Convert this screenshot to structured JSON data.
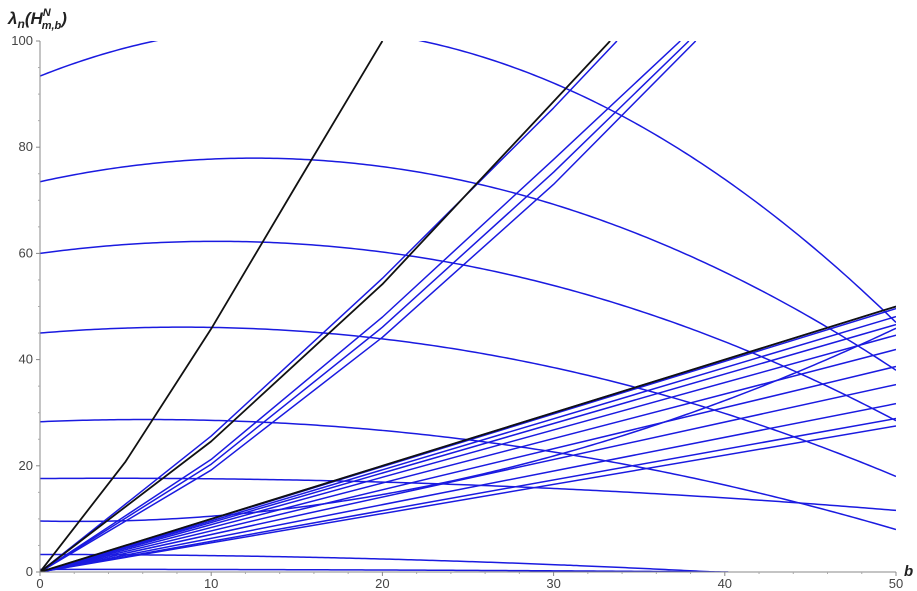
{
  "chart_data": {
    "type": "line",
    "title": "",
    "xlabel": "b",
    "ylabel": {
      "base": "λ",
      "sub_n": "n",
      "open": "(",
      "op": "H",
      "sup": "N",
      "sub": "m,b",
      "close": ")"
    },
    "xlim": [
      0,
      50
    ],
    "ylim": [
      0,
      100
    ],
    "x_ticks": [
      "0",
      "10",
      "20",
      "30",
      "40",
      "50"
    ],
    "y_ticks": [
      "0",
      "20",
      "40",
      "60",
      "80",
      "100"
    ],
    "x_tick_values": [
      0,
      10,
      20,
      30,
      40,
      50
    ],
    "y_tick_values": [
      0,
      20,
      40,
      60,
      80,
      100
    ],
    "grid": false,
    "colors": {
      "blue_curves": "#1a1ae0",
      "black_curves": "#111111",
      "axis": "#888888"
    },
    "series_groups": [
      {
        "group": "blue-lines",
        "color": "#1a1ae0",
        "series": [
          {
            "x": [
              0,
              50
            ],
            "y": [
              0,
              27.5
            ]
          },
          {
            "x": [
              0,
              50
            ],
            "y": [
              0,
              28.9
            ]
          },
          {
            "x": [
              0,
              50
            ],
            "y": [
              0,
              31.7
            ]
          },
          {
            "x": [
              0,
              50
            ],
            "y": [
              0,
              35.3
            ]
          },
          {
            "x": [
              0,
              50
            ],
            "y": [
              0,
              38.7
            ]
          },
          {
            "x": [
              0,
              50
            ],
            "y": [
              0,
              41.9
            ]
          },
          {
            "x": [
              0,
              50
            ],
            "y": [
              0,
              44.6
            ]
          },
          {
            "x": [
              0,
              50
            ],
            "y": [
              0,
              46.6
            ]
          },
          {
            "x": [
              0,
              50
            ],
            "y": [
              0,
              48.1
            ]
          },
          {
            "x": [
              0,
              50
            ],
            "y": [
              0,
              49.6
            ]
          },
          {
            "x": [
              0,
              50
            ],
            "y": [
              0,
              50.0
            ]
          }
        ]
      },
      {
        "group": "blue-parabolas",
        "color": "#1a1ae0",
        "series": [
          {
            "x": [
              0,
              40.2
            ],
            "y": [
              0.5,
              0
            ],
            "x_end": 40.2,
            "vertex_x": 0
          },
          {
            "x": [
              0,
              39.4
            ],
            "y": [
              3.3,
              0
            ],
            "x_end": 39.4,
            "vertex_x": 0
          },
          {
            "x": [
              0,
              50
            ],
            "y": [
              9.6,
              45.9
            ],
            "x_end": 50,
            "vertex_x": 2.15
          },
          {
            "x": [
              0,
              50
            ],
            "y": [
              17.6,
              11.6
            ],
            "x_end": 50,
            "vertex_x": 4.2
          },
          {
            "x": [
              0,
              50
            ],
            "y": [
              28.3,
              8
            ],
            "x_end": 50,
            "vertex_x": 6.2
          },
          {
            "x": [
              0,
              50
            ],
            "y": [
              45,
              18
            ],
            "x_end": 50,
            "vertex_x": 8.3
          },
          {
            "x": [
              0,
              50
            ],
            "y": [
              60,
              28.5
            ],
            "x_end": 50,
            "vertex_x": 10.3
          },
          {
            "x": [
              0,
              50
            ],
            "y": [
              73.5,
              38
            ],
            "x_end": 50,
            "vertex_x": 12.5
          },
          {
            "x": [
              0,
              50
            ],
            "y": [
              93.4,
              47
            ],
            "x_end": 50,
            "vertex_x": 14.5
          }
        ]
      },
      {
        "group": "blue-upper-envelope",
        "color": "#1a1ae0",
        "series": [
          {
            "x": [
              0,
              10,
              20,
              30,
              38.3
            ],
            "y": [
              0,
              19.2,
              44.2,
              73,
              100
            ]
          },
          {
            "x": [
              0,
              10,
              20,
              30,
              37.9
            ],
            "y": [
              0,
              20.3,
              46.1,
              75.3,
              100
            ]
          },
          {
            "x": [
              0,
              10,
              20,
              30,
              37.4
            ],
            "y": [
              0,
              21.2,
              48,
              77.7,
              100
            ]
          },
          {
            "x": [
              0,
              10,
              20,
              30,
              33.7
            ],
            "y": [
              0,
              25.6,
              55.3,
              87.4,
              100
            ]
          }
        ]
      },
      {
        "group": "black-curves",
        "color": "#111111",
        "series": [
          {
            "x": [
              0,
              50
            ],
            "y": [
              0,
              50
            ]
          },
          {
            "x": [
              0,
              10,
              20,
              30,
              33.3
            ],
            "y": [
              0,
              24.6,
              54.2,
              88.6,
              100
            ]
          },
          {
            "x": [
              0,
              5,
              10,
              15,
              20
            ],
            "y": [
              0,
              20.8,
              45.8,
              73,
              100
            ]
          }
        ]
      }
    ]
  }
}
